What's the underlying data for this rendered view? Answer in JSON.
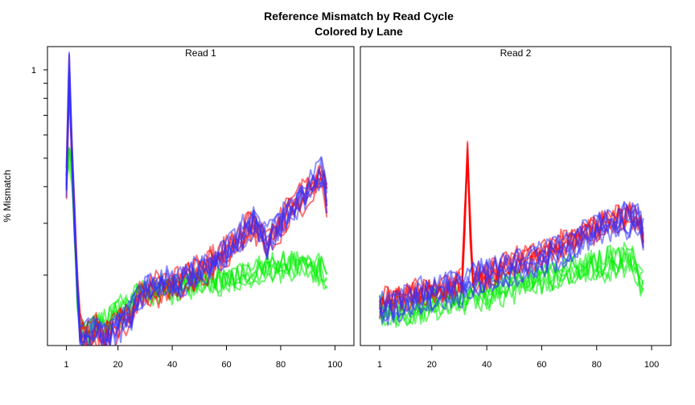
{
  "chart_data": {
    "type": "line",
    "title": "Reference Mismatch by Read Cycle",
    "subtitle": "Colored by Lane",
    "ylabel": "% Mismatch",
    "xlabel": "",
    "yscale": "log",
    "y_tick_labels": [
      "1"
    ],
    "x_tick_labels": [
      "1",
      "20",
      "40",
      "60",
      "80",
      "100"
    ],
    "x_ticks": [
      1,
      20,
      40,
      60,
      80,
      100
    ],
    "xlim": [
      -6,
      107
    ],
    "ylim": [
      0.115,
      1.2
    ],
    "colors": {
      "red": "#ff0000",
      "blue": "#3333ff",
      "green": "#00ee00"
    },
    "panels": [
      {
        "label": "Read 1",
        "groups": [
          {
            "color": "red",
            "count": 6,
            "cycles": [
              1,
              2,
              3,
              4,
              5,
              6,
              8,
              10,
              12,
              15,
              18,
              20,
              23,
              25,
              27,
              30,
              33,
              36,
              40,
              45,
              50,
              55,
              60,
              65,
              70,
              73,
              75,
              78,
              82,
              86,
              90,
              93,
              95,
              96,
              97
            ],
            "values": [
              0.42,
              1.0,
              0.52,
              0.3,
              0.18,
              0.13,
              0.12,
              0.125,
              0.13,
              0.12,
              0.13,
              0.135,
              0.14,
              0.145,
              0.16,
              0.175,
              0.18,
              0.18,
              0.185,
              0.19,
              0.205,
              0.22,
              0.24,
              0.265,
              0.3,
              0.28,
              0.25,
              0.28,
              0.32,
              0.35,
              0.39,
              0.42,
              0.44,
              0.4,
              0.36
            ]
          },
          {
            "color": "blue",
            "count": 6,
            "cycles": [
              1,
              2,
              3,
              4,
              5,
              6,
              8,
              10,
              12,
              15,
              18,
              20,
              23,
              25,
              27,
              30,
              33,
              36,
              40,
              45,
              50,
              55,
              60,
              65,
              70,
              73,
              75,
              78,
              82,
              86,
              90,
              93,
              95,
              96,
              97
            ],
            "values": [
              0.43,
              1.05,
              0.55,
              0.31,
              0.19,
              0.13,
              0.125,
              0.13,
              0.135,
              0.125,
              0.13,
              0.135,
              0.145,
              0.15,
              0.165,
              0.18,
              0.185,
              0.185,
              0.19,
              0.195,
              0.21,
              0.225,
              0.245,
              0.275,
              0.31,
              0.29,
              0.26,
              0.29,
              0.33,
              0.36,
              0.4,
              0.43,
              0.46,
              0.42,
              0.38
            ]
          },
          {
            "color": "green",
            "count": 6,
            "cycles": [
              1,
              2,
              3,
              4,
              5,
              6,
              8,
              10,
              12,
              15,
              18,
              20,
              23,
              25,
              27,
              30,
              33,
              36,
              40,
              45,
              50,
              55,
              60,
              65,
              70,
              73,
              75,
              78,
              82,
              86,
              90,
              93,
              95,
              96,
              97
            ],
            "values": [
              0.45,
              0.52,
              0.45,
              0.28,
              0.17,
              0.13,
              0.125,
              0.13,
              0.135,
              0.14,
              0.145,
              0.15,
              0.155,
              0.16,
              0.17,
              0.175,
              0.175,
              0.18,
              0.18,
              0.185,
              0.19,
              0.19,
              0.195,
              0.2,
              0.205,
              0.21,
              0.215,
              0.21,
              0.215,
              0.22,
              0.215,
              0.21,
              0.21,
              0.2,
              0.19
            ]
          }
        ]
      },
      {
        "label": "Read 2",
        "groups": [
          {
            "color": "red",
            "count": 6,
            "cycles": [
              1,
              3,
              5,
              8,
              10,
              13,
              16,
              20,
              24,
              28,
              31,
              32,
              33,
              34,
              35,
              38,
              42,
              46,
              50,
              55,
              60,
              65,
              70,
              75,
              80,
              85,
              90,
              93,
              95,
              97
            ],
            "values": [
              0.15,
              0.16,
              0.165,
              0.16,
              0.165,
              0.17,
              0.17,
              0.175,
              0.175,
              0.18,
              0.185,
              0.3,
              0.52,
              0.28,
              0.19,
              0.19,
              0.2,
              0.21,
              0.215,
              0.22,
              0.23,
              0.24,
              0.255,
              0.27,
              0.285,
              0.3,
              0.31,
              0.315,
              0.3,
              0.27
            ]
          },
          {
            "color": "blue",
            "count": 6,
            "cycles": [
              1,
              3,
              5,
              8,
              10,
              13,
              16,
              20,
              24,
              28,
              31,
              32,
              33,
              34,
              35,
              38,
              42,
              46,
              50,
              55,
              60,
              65,
              70,
              75,
              80,
              85,
              90,
              93,
              95,
              97
            ],
            "values": [
              0.15,
              0.155,
              0.16,
              0.16,
              0.16,
              0.165,
              0.17,
              0.17,
              0.175,
              0.18,
              0.18,
              0.185,
              0.19,
              0.19,
              0.19,
              0.195,
              0.2,
              0.205,
              0.21,
              0.215,
              0.225,
              0.235,
              0.25,
              0.265,
              0.28,
              0.29,
              0.305,
              0.31,
              0.3,
              0.27
            ]
          },
          {
            "color": "green",
            "count": 6,
            "cycles": [
              1,
              3,
              5,
              8,
              10,
              13,
              16,
              20,
              24,
              28,
              31,
              32,
              33,
              34,
              35,
              38,
              42,
              46,
              50,
              55,
              60,
              65,
              70,
              75,
              80,
              85,
              90,
              93,
              95,
              97
            ],
            "values": [
              0.15,
              0.15,
              0.15,
              0.15,
              0.152,
              0.155,
              0.155,
              0.16,
              0.162,
              0.165,
              0.165,
              0.167,
              0.168,
              0.168,
              0.17,
              0.172,
              0.175,
              0.18,
              0.185,
              0.19,
              0.195,
              0.2,
              0.205,
              0.21,
              0.215,
              0.22,
              0.225,
              0.22,
              0.2,
              0.185
            ]
          }
        ]
      }
    ]
  }
}
